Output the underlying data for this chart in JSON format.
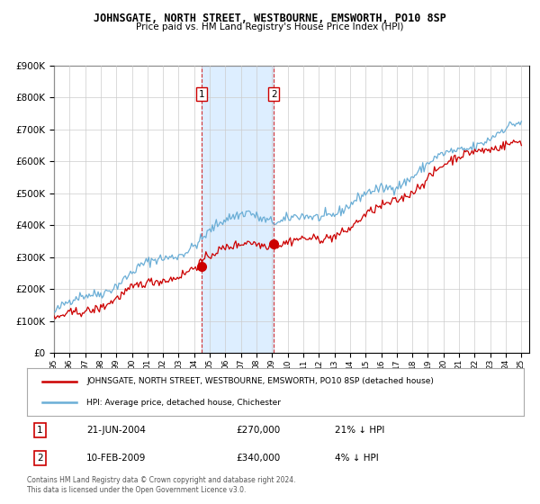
{
  "title": "JOHNSGATE, NORTH STREET, WESTBOURNE, EMSWORTH, PO10 8SP",
  "subtitle": "Price paid vs. HM Land Registry's House Price Index (HPI)",
  "legend_line1": "JOHNSGATE, NORTH STREET, WESTBOURNE, EMSWORTH, PO10 8SP (detached house)",
  "legend_line2": "HPI: Average price, detached house, Chichester",
  "sale1_label": "1",
  "sale1_date": "21-JUN-2004",
  "sale1_price": "£270,000",
  "sale1_hpi": "21% ↓ HPI",
  "sale2_label": "2",
  "sale2_date": "10-FEB-2009",
  "sale2_price": "£340,000",
  "sale2_hpi": "4% ↓ HPI",
  "footnote": "Contains HM Land Registry data © Crown copyright and database right 2024.\nThis data is licensed under the Open Government Licence v3.0.",
  "sale1_x": 2004.47,
  "sale1_y": 270000,
  "sale2_x": 2009.11,
  "sale2_y": 340000,
  "shaded_x1": 2004.47,
  "shaded_x2": 2009.11,
  "hpi_color": "#6baed6",
  "price_color": "#cc0000",
  "shade_color": "#ddeeff",
  "background_color": "#ffffff",
  "ylim": [
    0,
    900000
  ],
  "xlim_start": 1995,
  "xlim_end": 2025.5
}
